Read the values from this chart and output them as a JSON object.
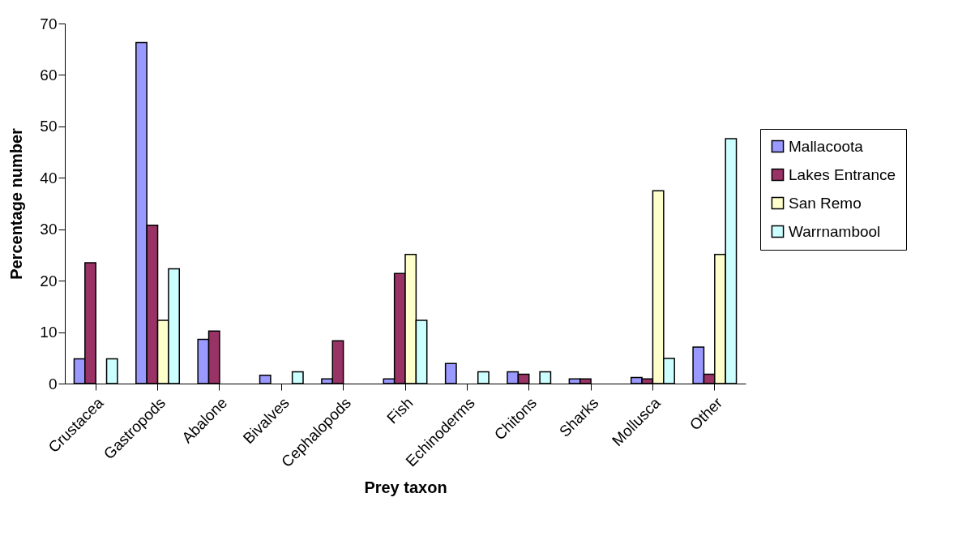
{
  "chart_data": {
    "type": "bar",
    "xlabel": "Prey taxon",
    "ylabel": "Percentage number",
    "categories": [
      "Crustacea",
      "Gastropods",
      "Abalone",
      "Bivalves",
      "Cephalopods",
      "Fish",
      "Echinoderms",
      "Chitons",
      "Sharks",
      "Mollusca",
      "Other"
    ],
    "series": [
      {
        "name": "Mallacoota",
        "color": "#9999ff",
        "values": [
          4.8,
          66.3,
          8.6,
          1.6,
          0.9,
          0.9,
          3.9,
          2.3,
          0.9,
          1.2,
          7.1
        ]
      },
      {
        "name": "Lakes Entrance",
        "color": "#993366",
        "values": [
          23.5,
          30.8,
          10.2,
          null,
          8.3,
          21.4,
          null,
          1.8,
          0.9,
          0.9,
          1.8
        ]
      },
      {
        "name": "San Remo",
        "color": "#ffffcc",
        "values": [
          null,
          12.3,
          null,
          null,
          null,
          25.1,
          null,
          null,
          null,
          37.5,
          25.1
        ]
      },
      {
        "name": "Warrnambool",
        "color": "#ccffff",
        "values": [
          4.8,
          22.3,
          null,
          2.3,
          null,
          12.3,
          2.3,
          2.3,
          null,
          4.9,
          47.6
        ]
      }
    ],
    "ylim": [
      0,
      70
    ],
    "yticks": [
      0,
      10,
      20,
      30,
      40,
      50,
      60,
      70
    ],
    "legend": "right"
  }
}
